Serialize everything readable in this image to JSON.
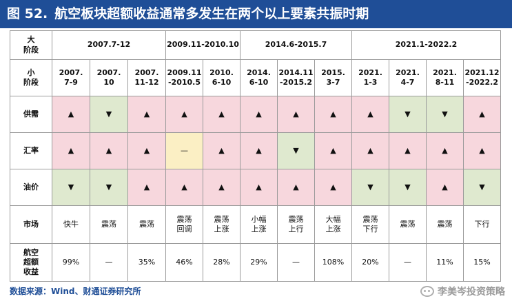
{
  "title": {
    "number": "图 52.",
    "text": "航空板块超额收益通常多发生在两个以上要素共振时期"
  },
  "table": {
    "big_stage_label": "大\n阶段",
    "small_stage_label": "小\n阶段",
    "big_stages": [
      "2007.7-12",
      "2009.11-2010.10",
      "2014.6-2015.7",
      "2021.1-2022.2"
    ],
    "small_stages": [
      "2007.\n7-9",
      "2007.\n10",
      "2007.\n11-12",
      "2009.11\n-2010.5",
      "2010.\n6-10",
      "2014.\n6-10",
      "2014.11\n-2015.2",
      "2015.\n3-7",
      "2021.\n1-3",
      "2021.\n4-7",
      "2021.\n8-11",
      "2021.12\n-2022.2"
    ],
    "rows": [
      {
        "label": "供需",
        "cells": [
          "▲",
          "▼",
          "▲",
          "▲",
          "▲",
          "▲",
          "▲",
          "▲",
          "▲",
          "▼",
          "▼",
          "▲"
        ],
        "colors": [
          "pink",
          "green",
          "pink",
          "pink",
          "pink",
          "pink",
          "pink",
          "pink",
          "pink",
          "green",
          "green",
          "pink"
        ]
      },
      {
        "label": "汇率",
        "cells": [
          "▲",
          "▲",
          "▲",
          "—",
          "▲",
          "▲",
          "▼",
          "▲",
          "▲",
          "▲",
          "▲",
          "▲"
        ],
        "colors": [
          "pink",
          "pink",
          "pink",
          "yellow",
          "pink",
          "pink",
          "green",
          "pink",
          "pink",
          "pink",
          "pink",
          "pink"
        ]
      },
      {
        "label": "油价",
        "cells": [
          "▼",
          "▼",
          "▲",
          "▲",
          "▲",
          "▲",
          "▲",
          "▲",
          "▼",
          "▼",
          "▲",
          "▼"
        ],
        "colors": [
          "green",
          "green",
          "pink",
          "pink",
          "pink",
          "pink",
          "pink",
          "pink",
          "green",
          "green",
          "pink",
          "green"
        ]
      }
    ],
    "market": {
      "label": "市场",
      "cells": [
        "快牛",
        "震荡",
        "震荡",
        "震荡\n回调",
        "震荡\n上涨",
        "小幅\n上涨",
        "震荡\n上行",
        "大幅\n上涨",
        "震荡\n下行",
        "震荡",
        "震荡",
        "下行"
      ]
    },
    "excess": {
      "label": "航空\n超额\n收益",
      "cells": [
        "99%",
        "—",
        "35%",
        "46%",
        "28%",
        "29%",
        "—",
        "108%",
        "20%",
        "—",
        "11%",
        "15%"
      ]
    }
  },
  "footer": "数据来源：Wind、财通证券研究所",
  "watermark": "李美岑投资策略",
  "colors": {
    "header_blue": "#1f4e97",
    "pink": "#f7d7dd",
    "green": "#dfe9cf",
    "yellow": "#fbefc4"
  }
}
